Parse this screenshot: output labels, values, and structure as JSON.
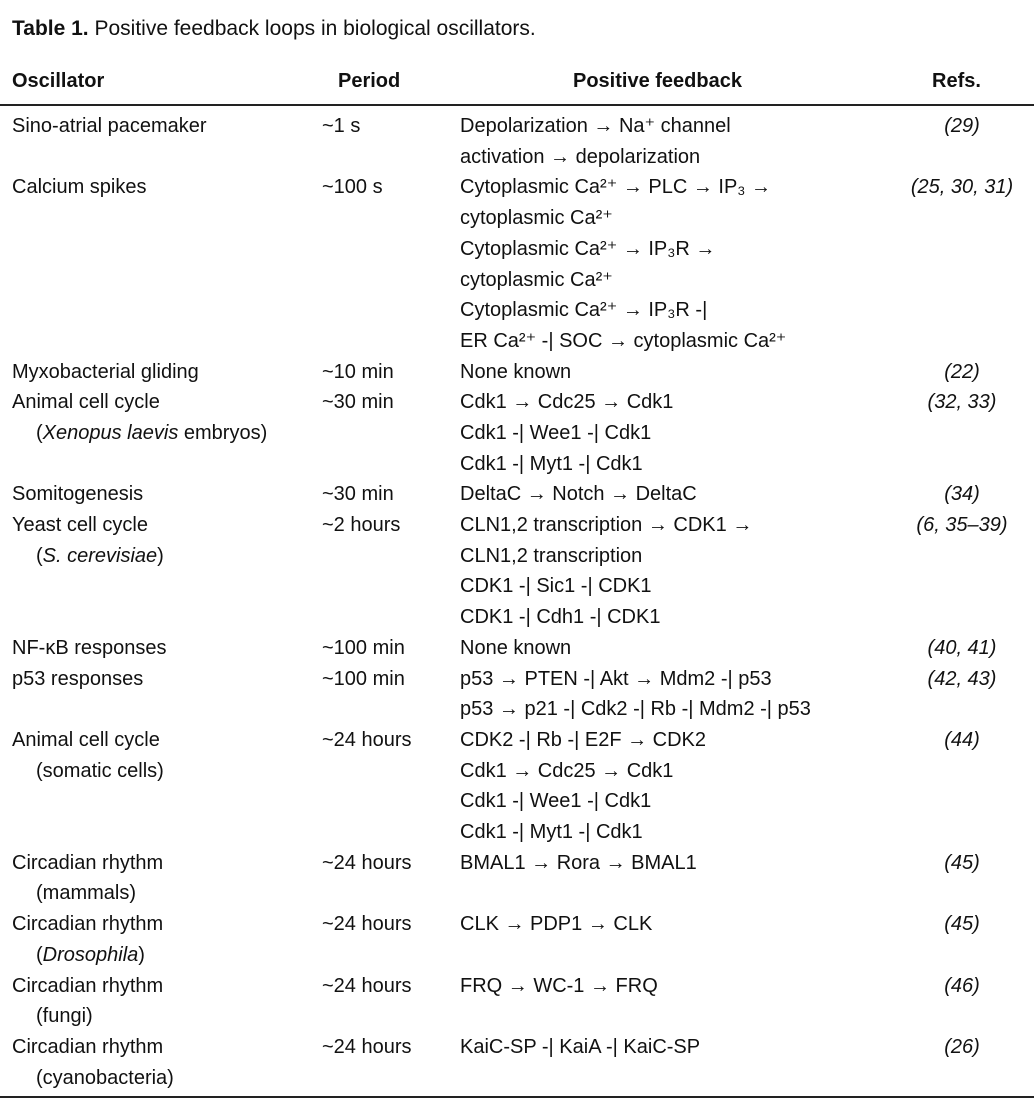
{
  "title": {
    "label": "Table 1.",
    "text": "Positive feedback loops in biological oscillators."
  },
  "headers": {
    "oscillator": "Oscillator",
    "period": "Period",
    "feedback": "Positive feedback",
    "refs": "Refs."
  },
  "rows": [
    {
      "oscillator": [
        [
          {
            "t": "Sino-atrial pacemaker"
          }
        ]
      ],
      "period": "~1 s",
      "feedback": [
        "Depolarization → Na⁺ channel",
        "activation → depolarization"
      ],
      "refs": "(29)"
    },
    {
      "oscillator": [
        [
          {
            "t": "Calcium spikes"
          }
        ]
      ],
      "period": "~100 s",
      "feedback": [
        "Cytoplasmic Ca²⁺ → PLC → IP₃ →",
        "cytoplasmic Ca²⁺",
        "Cytoplasmic Ca²⁺ → IP₃R →",
        "cytoplasmic Ca²⁺",
        "Cytoplasmic Ca²⁺ → IP₃R -|",
        "ER Ca²⁺ -| SOC → cytoplasmic Ca²⁺"
      ],
      "refs": "(25, 30, 31)"
    },
    {
      "oscillator": [
        [
          {
            "t": "Myxobacterial gliding"
          }
        ]
      ],
      "period": "~10 min",
      "feedback": [
        "None known"
      ],
      "refs": "(22)"
    },
    {
      "oscillator": [
        [
          {
            "t": "Animal cell cycle"
          }
        ],
        [
          {
            "t": "("
          },
          {
            "t": "Xenopus laevis",
            "i": true
          },
          {
            "t": " embryos)"
          }
        ]
      ],
      "period": "~30 min",
      "feedback": [
        "Cdk1 → Cdc25 → Cdk1",
        "Cdk1 -| Wee1 -| Cdk1",
        "Cdk1 -| Myt1 -| Cdk1"
      ],
      "refs": "(32, 33)"
    },
    {
      "oscillator": [
        [
          {
            "t": "Somitogenesis"
          }
        ]
      ],
      "period": "~30 min",
      "feedback": [
        "DeltaC → Notch → DeltaC"
      ],
      "refs": "(34)"
    },
    {
      "oscillator": [
        [
          {
            "t": "Yeast cell cycle"
          }
        ],
        [
          {
            "t": "("
          },
          {
            "t": "S. cerevisiae",
            "i": true
          },
          {
            "t": ")"
          }
        ]
      ],
      "period": "~2 hours",
      "feedback": [
        "CLN1,2 transcription → CDK1 →",
        "CLN1,2 transcription",
        "CDK1 -| Sic1 -| CDK1",
        "CDK1 -| Cdh1 -| CDK1"
      ],
      "refs": "(6, 35–39)"
    },
    {
      "oscillator": [
        [
          {
            "t": "NF-κB responses"
          }
        ]
      ],
      "period": "~100 min",
      "feedback": [
        "None known"
      ],
      "refs": "(40, 41)"
    },
    {
      "oscillator": [
        [
          {
            "t": "p53 responses"
          }
        ]
      ],
      "period": "~100 min",
      "feedback": [
        "p53 → PTEN -| Akt → Mdm2 -| p53",
        "p53 → p21 -| Cdk2 -| Rb -| Mdm2 -| p53"
      ],
      "refs": "(42, 43)"
    },
    {
      "oscillator": [
        [
          {
            "t": "Animal cell cycle"
          }
        ],
        [
          {
            "t": "(somatic cells)"
          }
        ]
      ],
      "period": "~24 hours",
      "feedback": [
        "CDK2 -| Rb -| E2F → CDK2",
        "Cdk1 → Cdc25 → Cdk1",
        "Cdk1 -| Wee1 -| Cdk1",
        "Cdk1 -| Myt1 -| Cdk1"
      ],
      "refs": "(44)"
    },
    {
      "oscillator": [
        [
          {
            "t": "Circadian rhythm"
          }
        ],
        [
          {
            "t": "(mammals)"
          }
        ]
      ],
      "period": "~24 hours",
      "feedback": [
        "BMAL1 → Rora → BMAL1"
      ],
      "refs": "(45)"
    },
    {
      "oscillator": [
        [
          {
            "t": "Circadian rhythm"
          }
        ],
        [
          {
            "t": "("
          },
          {
            "t": "Drosophila",
            "i": true
          },
          {
            "t": ")"
          }
        ]
      ],
      "period": "~24 hours",
      "feedback": [
        "CLK → PDP1 → CLK"
      ],
      "refs": "(45)"
    },
    {
      "oscillator": [
        [
          {
            "t": "Circadian rhythm"
          }
        ],
        [
          {
            "t": "(fungi)"
          }
        ]
      ],
      "period": "~24 hours",
      "feedback": [
        "FRQ → WC-1 → FRQ"
      ],
      "refs": "(46)"
    },
    {
      "oscillator": [
        [
          {
            "t": "Circadian rhythm"
          }
        ],
        [
          {
            "t": "(cyanobacteria)"
          }
        ]
      ],
      "period": "~24 hours",
      "feedback": [
        "KaiC-SP -| KaiA -| KaiC-SP"
      ],
      "refs": "(26)"
    }
  ]
}
